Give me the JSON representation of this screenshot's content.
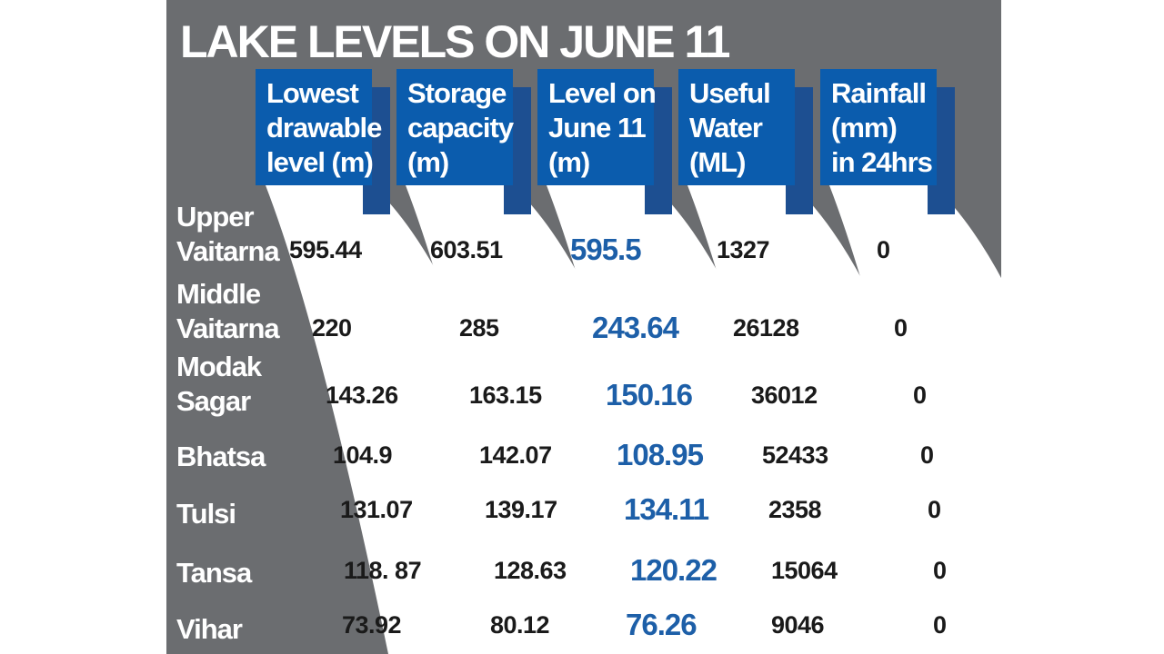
{
  "title": "LAKE LEVELS ON JUNE 11",
  "colors": {
    "panel": "#6b6d70",
    "header": "#0b5cad",
    "highlight": "#1d5fa8"
  },
  "columns": [
    {
      "lines": [
        "Lowest",
        "drawable",
        "level (m)"
      ]
    },
    {
      "lines": [
        "Storage",
        "capacity",
        "(m)"
      ]
    },
    {
      "lines": [
        "Level on",
        "June 11",
        "(m)"
      ]
    },
    {
      "lines": [
        "Useful",
        "Water",
        "(ML)"
      ]
    },
    {
      "lines": [
        "Rainfall",
        "(mm)",
        "in 24hrs"
      ]
    }
  ],
  "rows": [
    {
      "lines": [
        "Upper",
        "Vaitarna"
      ],
      "values": [
        "595.44",
        "603.51",
        "595.5",
        "1327",
        "0"
      ]
    },
    {
      "lines": [
        "Middle",
        "Vaitarna"
      ],
      "values": [
        "220",
        "285",
        "243.64",
        "26128",
        "0"
      ]
    },
    {
      "lines": [
        "Modak",
        "Sagar"
      ],
      "values": [
        "143.26",
        "163.15",
        "150.16",
        "36012",
        "0"
      ]
    },
    {
      "lines": [
        "Bhatsa"
      ],
      "values": [
        "104.9",
        "142.07",
        "108.95",
        "52433",
        "0"
      ]
    },
    {
      "lines": [
        "Tulsi"
      ],
      "values": [
        "131.07",
        "139.17",
        "134.11",
        "2358",
        "0"
      ]
    },
    {
      "lines": [
        "Tansa"
      ],
      "values": [
        "118. 87",
        "128.63",
        "120.22",
        "15064",
        "0"
      ]
    },
    {
      "lines": [
        "Vihar"
      ],
      "values": [
        "73.92",
        "80.12",
        "76.26",
        "9046",
        "0"
      ]
    }
  ],
  "chart_data": {
    "type": "table",
    "title": "LAKE LEVELS ON JUNE 11",
    "columns": [
      "Lowest drawable level (m)",
      "Storage capacity (m)",
      "Level on June 11 (m)",
      "Useful Water (ML)",
      "Rainfall (mm) in 24hrs"
    ],
    "categories": [
      "Upper Vaitarna",
      "Middle Vaitarna",
      "Modak Sagar",
      "Bhatsa",
      "Tulsi",
      "Tansa",
      "Vihar"
    ],
    "series": [
      {
        "name": "Lowest drawable level (m)",
        "values": [
          595.44,
          220,
          143.26,
          104.9,
          131.07,
          118.87,
          73.92
        ]
      },
      {
        "name": "Storage capacity (m)",
        "values": [
          603.51,
          285,
          163.15,
          142.07,
          139.17,
          128.63,
          80.12
        ]
      },
      {
        "name": "Level on June 11 (m)",
        "values": [
          595.5,
          243.64,
          150.16,
          108.95,
          134.11,
          120.22,
          76.26
        ]
      },
      {
        "name": "Useful Water (ML)",
        "values": [
          1327,
          26128,
          36012,
          52433,
          2358,
          15064,
          9046
        ]
      },
      {
        "name": "Rainfall (mm) in 24hrs",
        "values": [
          0,
          0,
          0,
          0,
          0,
          0,
          0
        ]
      }
    ]
  }
}
